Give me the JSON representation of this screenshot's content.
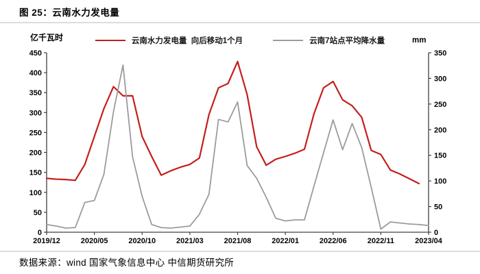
{
  "header": {
    "title": "图 25：云南水力发电量"
  },
  "footer": {
    "source": "数据来源：wind 国家气象信息中心 中信期货研究所"
  },
  "colors": {
    "accent_red": "#c41e1a",
    "series_gray": "#9b9b9b",
    "axis": "#404040",
    "rule": "#dcdcdc"
  },
  "chart_data": {
    "type": "line",
    "title": "云南水力发电量",
    "legend_position": "top",
    "grid": false,
    "x": [
      "2019/12",
      "2020/01",
      "2020/02",
      "2020/03",
      "2020/04",
      "2020/05",
      "2020/06",
      "2020/07",
      "2020/08",
      "2020/09",
      "2020/10",
      "2020/11",
      "2020/12",
      "2021/01",
      "2021/02",
      "2021/03",
      "2021/04",
      "2021/05",
      "2021/06",
      "2021/07",
      "2021/08",
      "2021/09",
      "2021/10",
      "2021/11",
      "2021/12",
      "2022/01",
      "2022/02",
      "2022/03",
      "2022/04",
      "2022/05",
      "2022/06",
      "2022/07",
      "2022/08",
      "2022/09",
      "2022/10",
      "2022/11",
      "2022/12",
      "2023/01",
      "2023/02",
      "2023/03",
      "2023/04"
    ],
    "x_tick_labels": [
      "2019/12",
      "2020/05",
      "2020/10",
      "2021/03",
      "2021/08",
      "2022/01",
      "2022/06",
      "2022/11",
      "2023/04"
    ],
    "left_axis": {
      "unit": "亿千瓦时",
      "min": 0,
      "max": 450,
      "step": 50
    },
    "right_axis": {
      "unit": "mm",
      "min": 0,
      "max": 350,
      "step": 50
    },
    "series": [
      {
        "name": "云南水力发电量  向后移动1个月",
        "axis": "left",
        "color": "#c41e1a",
        "values": [
          135,
          133,
          132,
          130,
          170,
          240,
          310,
          365,
          342,
          342,
          240,
          190,
          143,
          154,
          163,
          170,
          186,
          295,
          362,
          373,
          428,
          345,
          214,
          168,
          183,
          190,
          198,
          208,
          297,
          362,
          378,
          332,
          317,
          288,
          205,
          195,
          156,
          146,
          134,
          122
        ]
      },
      {
        "name": "云南7站点平均降水量",
        "axis": "right",
        "color": "#9b9b9b",
        "values": [
          15,
          12,
          8,
          9,
          58,
          62,
          113,
          235,
          326,
          147,
          70,
          15,
          9,
          8,
          10,
          12,
          35,
          74,
          220,
          215,
          254,
          130,
          105,
          68,
          27,
          22,
          24,
          24,
          90,
          155,
          219,
          161,
          212,
          165,
          87,
          6,
          20,
          18,
          16,
          15,
          13
        ]
      }
    ]
  }
}
